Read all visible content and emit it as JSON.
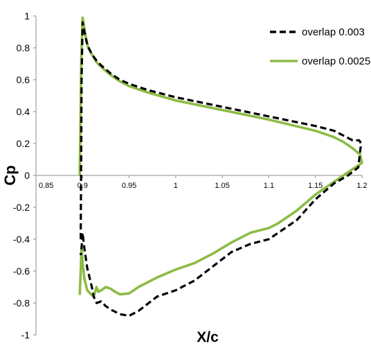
{
  "chart_data": {
    "type": "line",
    "title": "",
    "xlabel": "X/c",
    "ylabel": "Cp",
    "xlim": [
      0.85,
      1.2
    ],
    "ylim": [
      -1,
      1
    ],
    "x_ticks": [
      "0.85",
      "0.9",
      "0.95",
      "1",
      "1.05",
      "1.1",
      "1.15",
      "1.2"
    ],
    "y_ticks": [
      "1",
      "0.8",
      "0.6",
      "0.4",
      "0.2",
      "0",
      "-0.2",
      "-0.4",
      "-0.6",
      "-0.8",
      "-1"
    ],
    "grid": false,
    "legend_position": "top-right",
    "series": [
      {
        "name": "overlap 0.003",
        "color": "#000000",
        "style": "dashed",
        "x": [
          0.898,
          0.899,
          0.9,
          0.902,
          0.905,
          0.91,
          0.915,
          0.92,
          0.93,
          0.94,
          0.95,
          0.97,
          1.0,
          1.05,
          1.1,
          1.15,
          1.17,
          1.18,
          1.19,
          1.197,
          1.199,
          1.196,
          1.185,
          1.17,
          1.15,
          1.13,
          1.1,
          1.08,
          1.06,
          1.04,
          1.02,
          1.0,
          0.98,
          0.96,
          0.95,
          0.94,
          0.93,
          0.925,
          0.92,
          0.915,
          0.912,
          0.91,
          0.905,
          0.902,
          0.9,
          0.899,
          0.898
        ],
        "y": [
          -0.4,
          0.6,
          0.96,
          0.9,
          0.82,
          0.76,
          0.72,
          0.69,
          0.64,
          0.6,
          0.575,
          0.535,
          0.49,
          0.43,
          0.37,
          0.31,
          0.28,
          0.25,
          0.22,
          0.22,
          0.2,
          0.05,
          0.0,
          -0.05,
          -0.15,
          -0.28,
          -0.4,
          -0.43,
          -0.48,
          -0.57,
          -0.66,
          -0.72,
          -0.76,
          -0.85,
          -0.88,
          -0.87,
          -0.84,
          -0.82,
          -0.79,
          -0.8,
          -0.76,
          -0.7,
          -0.58,
          -0.46,
          -0.36,
          -0.45,
          -0.5
        ]
      },
      {
        "name": "overlap 0.0025",
        "color": "#8dbb45",
        "style": "solid",
        "x": [
          0.897,
          0.8985,
          0.9,
          0.901,
          0.903,
          0.906,
          0.91,
          0.915,
          0.92,
          0.93,
          0.94,
          0.95,
          0.97,
          1.0,
          1.05,
          1.1,
          1.15,
          1.17,
          1.18,
          1.19,
          1.198,
          1.2,
          1.198,
          1.19,
          1.18,
          1.17,
          1.15,
          1.13,
          1.11,
          1.1,
          1.08,
          1.06,
          1.04,
          1.02,
          1.0,
          0.98,
          0.96,
          0.95,
          0.94,
          0.935,
          0.93,
          0.925,
          0.92,
          0.917,
          0.915,
          0.912,
          0.91,
          0.905,
          0.902,
          0.9,
          0.899,
          0.898,
          0.897
        ],
        "y": [
          0.0,
          0.7,
          0.99,
          0.96,
          0.88,
          0.8,
          0.76,
          0.71,
          0.68,
          0.63,
          0.59,
          0.56,
          0.52,
          0.47,
          0.41,
          0.35,
          0.28,
          0.24,
          0.21,
          0.17,
          0.13,
          0.08,
          0.07,
          0.04,
          0.0,
          -0.04,
          -0.12,
          -0.22,
          -0.3,
          -0.33,
          -0.36,
          -0.42,
          -0.49,
          -0.55,
          -0.59,
          -0.64,
          -0.7,
          -0.74,
          -0.745,
          -0.73,
          -0.71,
          -0.7,
          -0.72,
          -0.73,
          -0.7,
          -0.76,
          -0.75,
          -0.72,
          -0.65,
          -0.55,
          -0.45,
          -0.6,
          -0.75
        ]
      }
    ]
  }
}
